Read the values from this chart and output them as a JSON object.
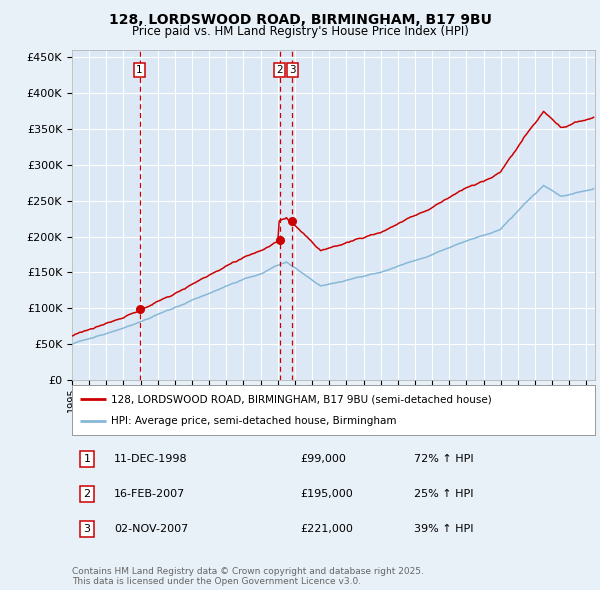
{
  "title": "128, LORDSWOOD ROAD, BIRMINGHAM, B17 9BU",
  "subtitle": "Price paid vs. HM Land Registry's House Price Index (HPI)",
  "bg_color": "#e8f0f8",
  "plot_bg_color": "#dce8f5",
  "red_line_color": "#cc0000",
  "blue_line_color": "#88b8d8",
  "grid_color": "#ffffff",
  "dashed_line_color": "#cc0000",
  "ytick_labels": [
    "£0",
    "£50K",
    "£100K",
    "£150K",
    "£200K",
    "£250K",
    "£300K",
    "£350K",
    "£400K",
    "£450K"
  ],
  "yticks": [
    0,
    50000,
    100000,
    150000,
    200000,
    250000,
    300000,
    350000,
    400000,
    450000
  ],
  "xmin": 1995.0,
  "xmax": 2025.5,
  "ymin": 0,
  "ymax": 460000,
  "purchase_dates": [
    1998.94,
    2007.12,
    2007.84
  ],
  "purchase_prices": [
    99000,
    195000,
    221000
  ],
  "purchase_labels": [
    "1",
    "2",
    "3"
  ],
  "table_rows": [
    [
      "1",
      "11-DEC-1998",
      "£99,000",
      "72% ↑ HPI"
    ],
    [
      "2",
      "16-FEB-2007",
      "£195,000",
      "25% ↑ HPI"
    ],
    [
      "3",
      "02-NOV-2007",
      "£221,000",
      "39% ↑ HPI"
    ]
  ],
  "legend_entries": [
    "128, LORDSWOOD ROAD, BIRMINGHAM, B17 9BU (semi-detached house)",
    "HPI: Average price, semi-detached house, Birmingham"
  ],
  "footnote": "Contains HM Land Registry data © Crown copyright and database right 2025.\nThis data is licensed under the Open Government Licence v3.0.",
  "font_family": "DejaVu Sans"
}
